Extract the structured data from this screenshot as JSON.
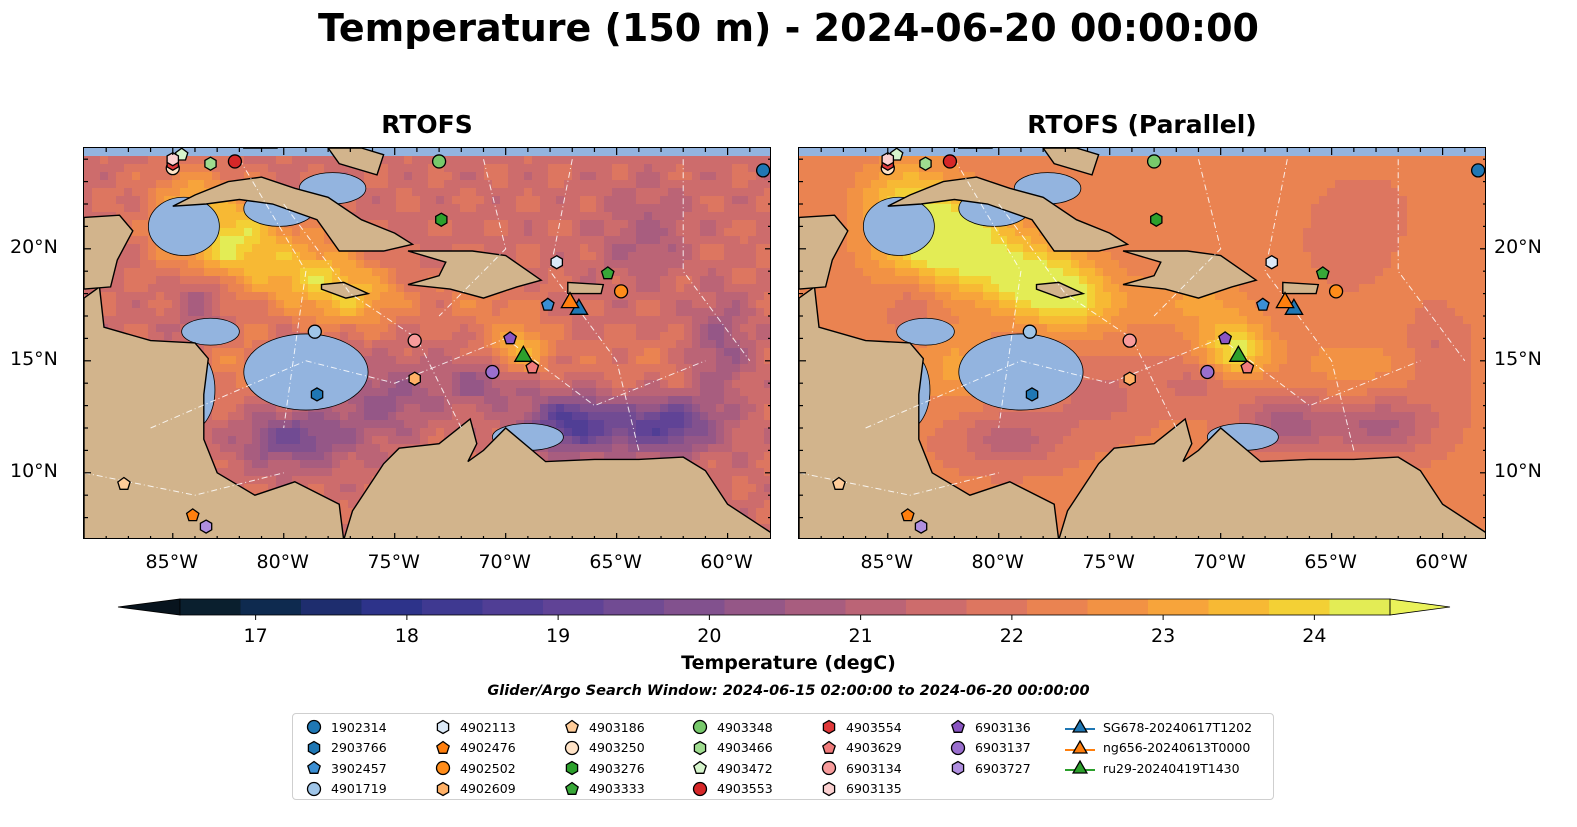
{
  "title": "Temperature (150 m) - 2024-06-20 00:00:00",
  "panels": [
    {
      "title": "RTOFS",
      "palette_mode": "main"
    },
    {
      "title": "RTOFS (Parallel)",
      "palette_mode": "parallel"
    }
  ],
  "axes": {
    "x_ticks": [
      "85°W",
      "80°W",
      "75°W",
      "70°W",
      "65°W",
      "60°W"
    ],
    "y_ticks": [
      "20°N",
      "15°N",
      "10°N"
    ],
    "lon_range": [
      -89,
      -58
    ],
    "lat_range": [
      7,
      24.5
    ]
  },
  "colorbar": {
    "label": "Temperature (degC)",
    "ticks": [
      "17",
      "18",
      "19",
      "20",
      "21",
      "22",
      "23",
      "24"
    ],
    "min": 16.5,
    "max": 24.5,
    "step": 0.5,
    "colors": [
      "#0a1f2e",
      "#0e2a4f",
      "#1e2d6e",
      "#2d338a",
      "#3f3991",
      "#503e95",
      "#604396",
      "#714b93",
      "#82518e",
      "#955787",
      "#a85d7f",
      "#bb6476",
      "#cd6c6c",
      "#dd7660",
      "#ea8351",
      "#f29244",
      "#f7a43b",
      "#f7b934",
      "#f3d035",
      "#e3ec55"
    ]
  },
  "search_window": "Glider/Argo Search Window: 2024-06-15 02:00:00 to 2024-06-20 00:00:00",
  "legend": {
    "items": [
      {
        "label": "1902314",
        "marker": "circle",
        "color": "#1f77b4"
      },
      {
        "label": "2903766",
        "marker": "hexagon",
        "color": "#1f77b4"
      },
      {
        "label": "3902457",
        "marker": "pentagon",
        "color": "#3b8fd4"
      },
      {
        "label": "4901719",
        "marker": "circle",
        "color": "#9fc5e8"
      },
      {
        "label": "4902113",
        "marker": "hexagon",
        "color": "#dbe9f7"
      },
      {
        "label": "4902476",
        "marker": "pentagon",
        "color": "#ff7f0e"
      },
      {
        "label": "4902502",
        "marker": "circle",
        "color": "#ff8c1a"
      },
      {
        "label": "4902609",
        "marker": "hexagon",
        "color": "#ffb066"
      },
      {
        "label": "4903186",
        "marker": "pentagon",
        "color": "#ffcc99"
      },
      {
        "label": "4903250",
        "marker": "circle",
        "color": "#ffe3c7"
      },
      {
        "label": "4903276",
        "marker": "hexagon",
        "color": "#2ca02c"
      },
      {
        "label": "4903333",
        "marker": "pentagon",
        "color": "#38a838"
      },
      {
        "label": "4903348",
        "marker": "circle",
        "color": "#77c96b"
      },
      {
        "label": "4903466",
        "marker": "hexagon",
        "color": "#9fdc8f"
      },
      {
        "label": "4903472",
        "marker": "pentagon",
        "color": "#d6f5cc"
      },
      {
        "label": "4903553",
        "marker": "circle",
        "color": "#d62728"
      },
      {
        "label": "4903554",
        "marker": "hexagon",
        "color": "#e0393a"
      },
      {
        "label": "4903629",
        "marker": "pentagon",
        "color": "#f07b7b"
      },
      {
        "label": "6903134",
        "marker": "circle",
        "color": "#f79b9b"
      },
      {
        "label": "6903135",
        "marker": "hexagon",
        "color": "#fbd0d0"
      },
      {
        "label": "6903136",
        "marker": "pentagon",
        "color": "#8a55c2"
      },
      {
        "label": "6903137",
        "marker": "circle",
        "color": "#9a6fce"
      },
      {
        "label": "6903727",
        "marker": "hexagon",
        "color": "#b08fe0"
      },
      {
        "label": "SG678-20240617T1202",
        "marker": "triangle-line",
        "color": "#1f77b4"
      },
      {
        "label": "ng656-20240613T0000",
        "marker": "triangle-line",
        "color": "#ff7f0e"
      },
      {
        "label": "ru29-20240419T1430",
        "marker": "triangle-line",
        "color": "#2ca02c"
      }
    ]
  },
  "markers": [
    {
      "id": "1902314",
      "marker": "circle",
      "color": "#1f77b4",
      "lon": -58.4,
      "lat": 23.5
    },
    {
      "id": "2903766",
      "marker": "hexagon",
      "color": "#1f77b4",
      "lon": -78.5,
      "lat": 13.5
    },
    {
      "id": "3902457",
      "marker": "pentagon",
      "color": "#3b8fd4",
      "lon": -68.1,
      "lat": 17.5
    },
    {
      "id": "4901719",
      "marker": "circle",
      "color": "#9fc5e8",
      "lon": -78.6,
      "lat": 16.3
    },
    {
      "id": "4902113",
      "marker": "hexagon",
      "color": "#dbe9f7",
      "lon": -67.7,
      "lat": 19.4
    },
    {
      "id": "4902476",
      "marker": "pentagon",
      "color": "#ff7f0e",
      "lon": -84.1,
      "lat": 8.1
    },
    {
      "id": "4902502",
      "marker": "circle",
      "color": "#ff8c1a",
      "lon": -64.8,
      "lat": 18.1
    },
    {
      "id": "4902609",
      "marker": "hexagon",
      "color": "#ffb066",
      "lon": -74.1,
      "lat": 14.2
    },
    {
      "id": "4903186",
      "marker": "pentagon",
      "color": "#ffcc99",
      "lon": -87.2,
      "lat": 9.5
    },
    {
      "id": "4903250",
      "marker": "circle",
      "color": "#ffe3c7",
      "lon": -85.0,
      "lat": 23.6
    },
    {
      "id": "4903276",
      "marker": "hexagon",
      "color": "#2ca02c",
      "lon": -72.9,
      "lat": 21.3
    },
    {
      "id": "4903333",
      "marker": "pentagon",
      "color": "#38a838",
      "lon": -65.4,
      "lat": 18.9
    },
    {
      "id": "4903348",
      "marker": "circle",
      "color": "#77c96b",
      "lon": -73.0,
      "lat": 23.9
    },
    {
      "id": "4903466",
      "marker": "hexagon",
      "color": "#9fdc8f",
      "lon": -83.3,
      "lat": 23.8
    },
    {
      "id": "4903472",
      "marker": "pentagon",
      "color": "#d6f5cc",
      "lon": -84.6,
      "lat": 24.2
    },
    {
      "id": "4903553",
      "marker": "circle",
      "color": "#d62728",
      "lon": -82.2,
      "lat": 23.9
    },
    {
      "id": "4903554",
      "marker": "hexagon",
      "color": "#e0393a",
      "lon": -85.0,
      "lat": 23.8
    },
    {
      "id": "4903629",
      "marker": "pentagon",
      "color": "#f07b7b",
      "lon": -68.8,
      "lat": 14.7
    },
    {
      "id": "6903134",
      "marker": "circle",
      "color": "#f79b9b",
      "lon": -74.1,
      "lat": 15.9
    },
    {
      "id": "6903135",
      "marker": "hexagon",
      "color": "#fbd0d0",
      "lon": -85.0,
      "lat": 24.0
    },
    {
      "id": "6903136",
      "marker": "pentagon",
      "color": "#8a55c2",
      "lon": -69.8,
      "lat": 16.0
    },
    {
      "id": "6903137",
      "marker": "circle",
      "color": "#9a6fce",
      "lon": -70.6,
      "lat": 14.5
    },
    {
      "id": "6903727",
      "marker": "hexagon",
      "color": "#b08fe0",
      "lon": -83.5,
      "lat": 7.6
    },
    {
      "id": "SG678-20240617T1202",
      "marker": "triangle",
      "color": "#1f77b4",
      "lon": -66.7,
      "lat": 17.3
    },
    {
      "id": "ng656-20240613T0000",
      "marker": "triangle",
      "color": "#ff7f0e",
      "lon": -67.1,
      "lat": 17.6
    },
    {
      "id": "ru29-20240419T1430",
      "marker": "triangle",
      "color": "#2ca02c",
      "lon": -69.2,
      "lat": 15.2
    }
  ]
}
